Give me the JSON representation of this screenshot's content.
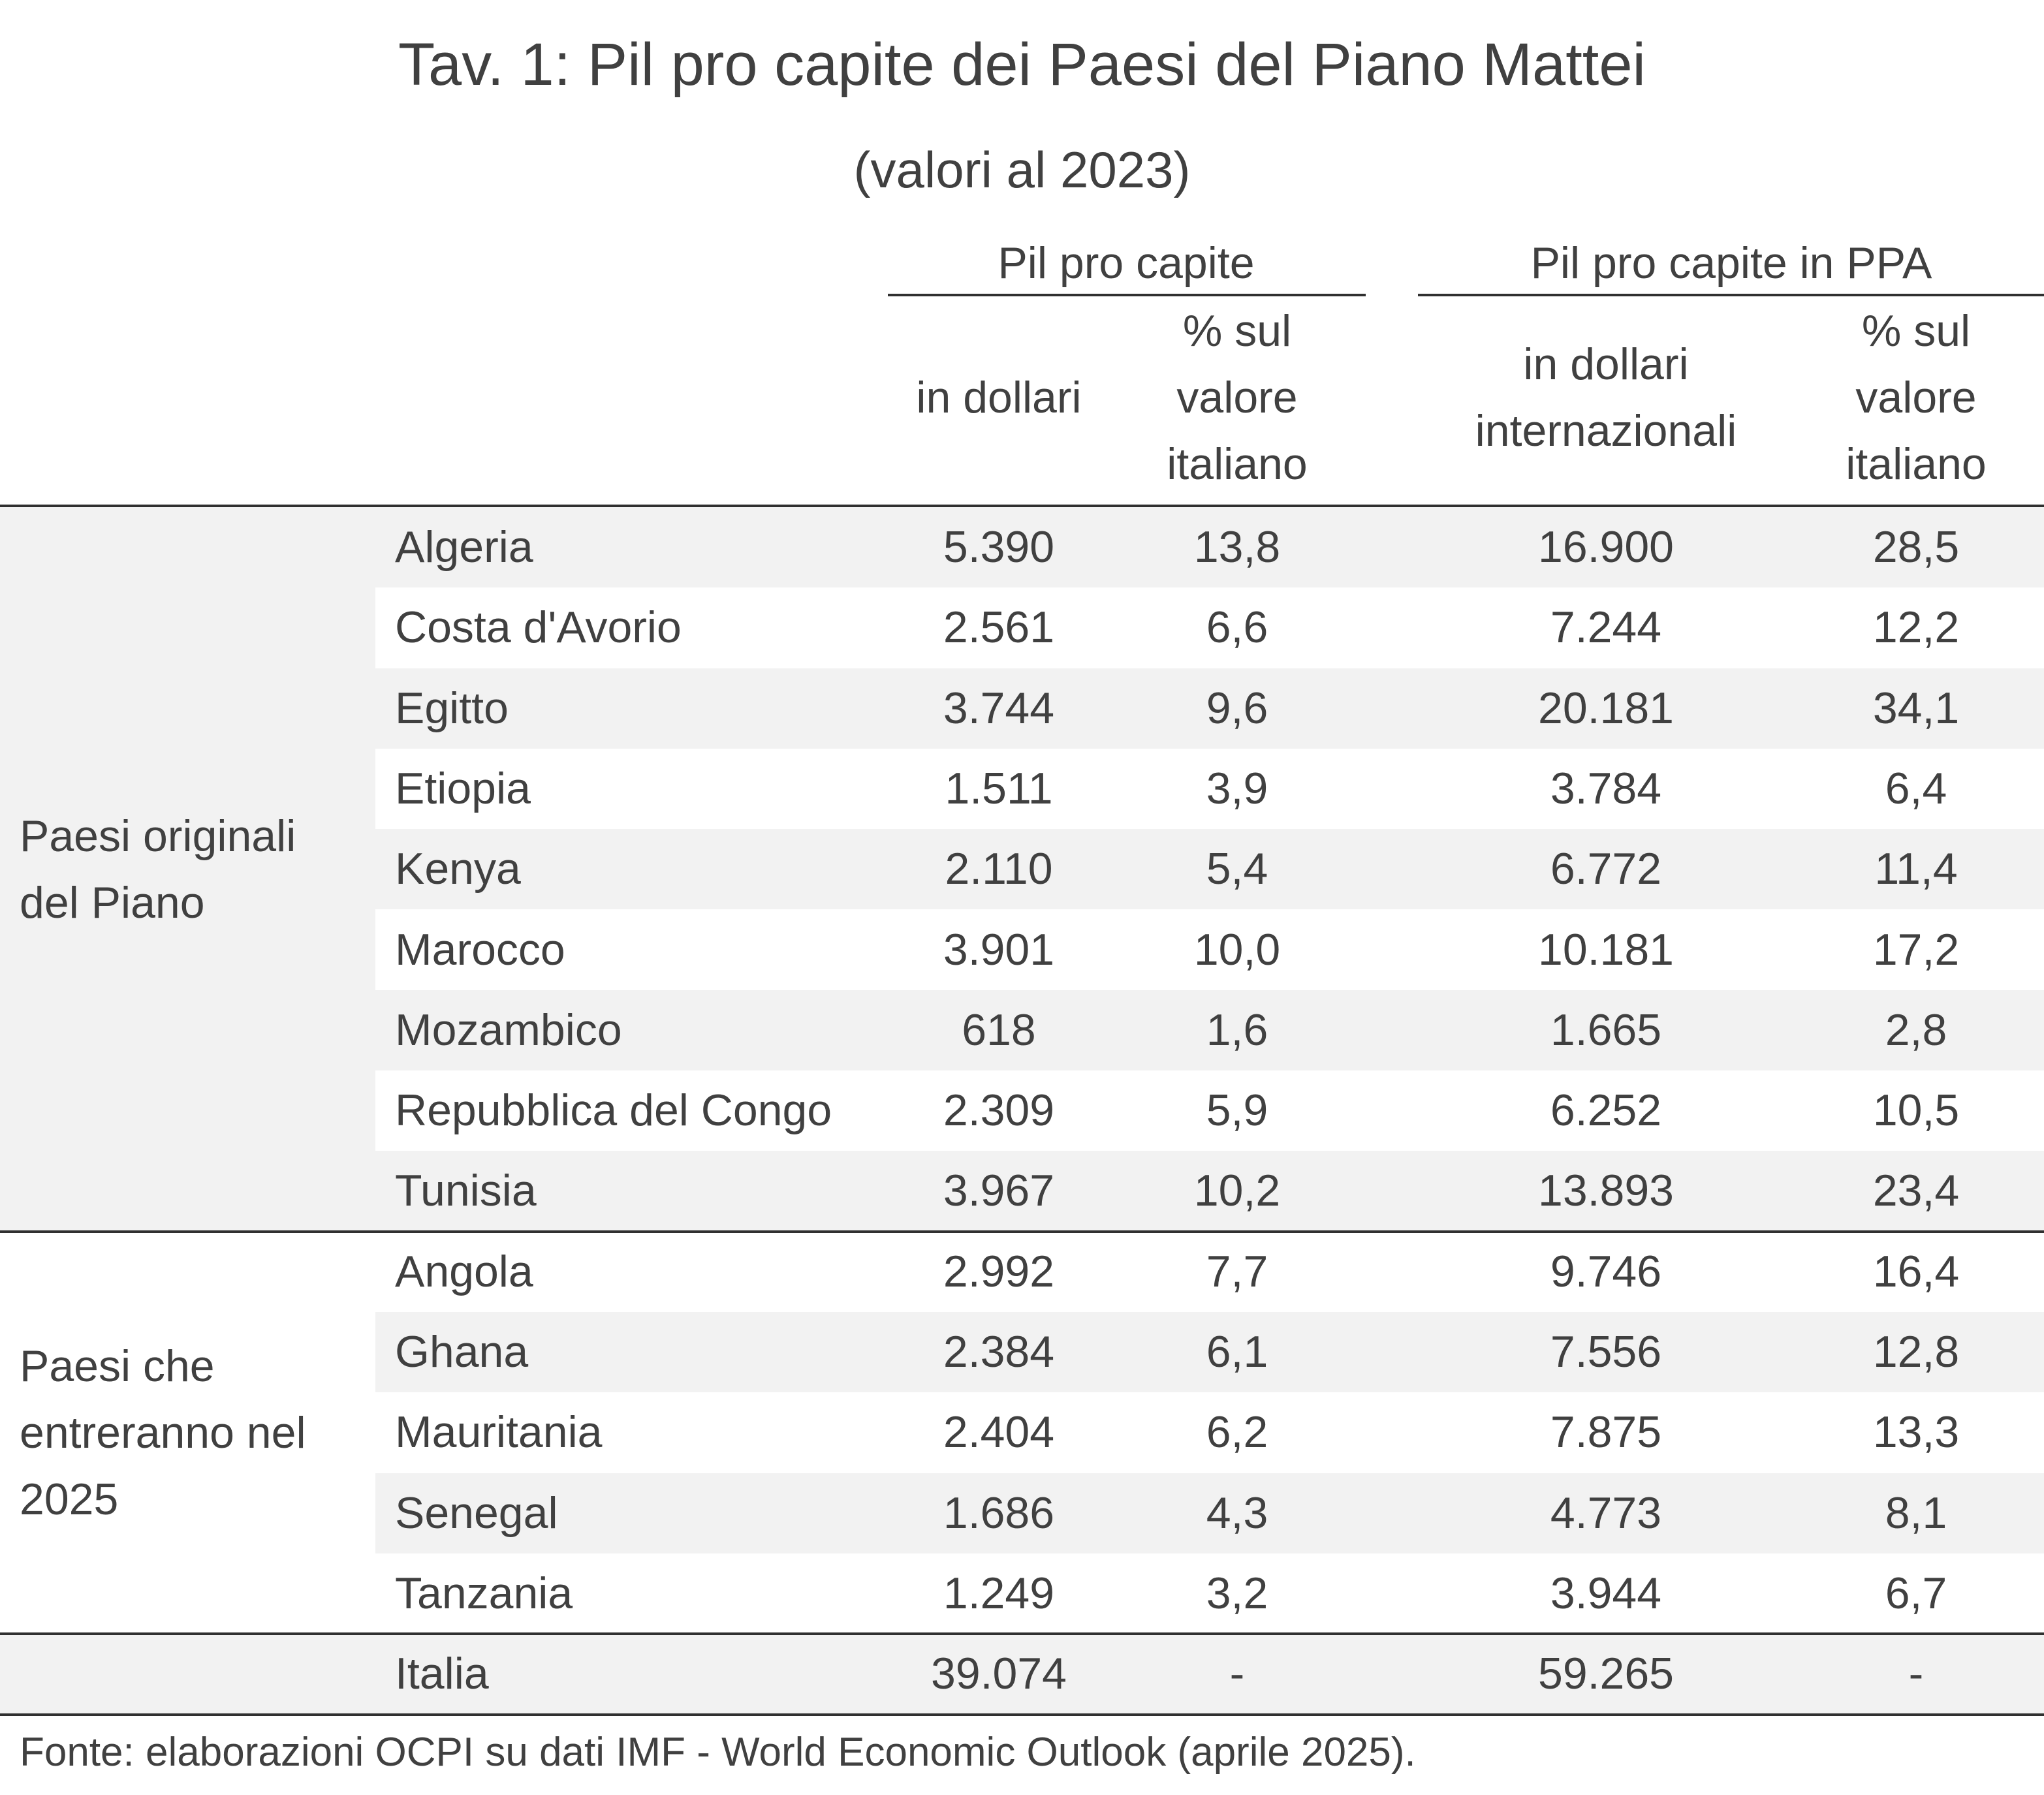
{
  "title": "Tav. 1: Pil pro capite dei Paesi del Piano Mattei",
  "subtitle": "(valori al 2023)",
  "chart_data": {
    "type": "table",
    "column_groups": [
      {
        "label": "Pil pro capite",
        "columns": [
          "in dollari",
          "% sul valore italiano"
        ]
      },
      {
        "label": "Pil pro capite in PPA",
        "columns": [
          "in dollari internazionali",
          "% sul valore italiano"
        ]
      }
    ],
    "headers": {
      "usd": [
        "in dollari"
      ],
      "usd_pct": [
        "% sul",
        "valore",
        "italiano"
      ],
      "ppa": [
        "in dollari",
        "internazionali"
      ],
      "ppa_pct": [
        "% sul",
        "valore",
        "italiano"
      ]
    },
    "groups": [
      {
        "label_lines": [
          "Paesi originali",
          "del Piano"
        ],
        "rows": [
          {
            "country": "Algeria",
            "usd": "5.390",
            "usd_pct": "13,8",
            "ppa": "16.900",
            "ppa_pct": "28,5"
          },
          {
            "country": "Costa d'Avorio",
            "usd": "2.561",
            "usd_pct": "6,6",
            "ppa": "7.244",
            "ppa_pct": "12,2"
          },
          {
            "country": "Egitto",
            "usd": "3.744",
            "usd_pct": "9,6",
            "ppa": "20.181",
            "ppa_pct": "34,1"
          },
          {
            "country": "Etiopia",
            "usd": "1.511",
            "usd_pct": "3,9",
            "ppa": "3.784",
            "ppa_pct": "6,4"
          },
          {
            "country": "Kenya",
            "usd": "2.110",
            "usd_pct": "5,4",
            "ppa": "6.772",
            "ppa_pct": "11,4"
          },
          {
            "country": "Marocco",
            "usd": "3.901",
            "usd_pct": "10,0",
            "ppa": "10.181",
            "ppa_pct": "17,2"
          },
          {
            "country": "Mozambico",
            "usd": "618",
            "usd_pct": "1,6",
            "ppa": "1.665",
            "ppa_pct": "2,8"
          },
          {
            "country": "Repubblica del Congo",
            "usd": "2.309",
            "usd_pct": "5,9",
            "ppa": "6.252",
            "ppa_pct": "10,5"
          },
          {
            "country": "Tunisia",
            "usd": "3.967",
            "usd_pct": "10,2",
            "ppa": "13.893",
            "ppa_pct": "23,4"
          }
        ]
      },
      {
        "label_lines": [
          "Paesi che",
          "entreranno nel",
          "2025"
        ],
        "rows": [
          {
            "country": "Angola",
            "usd": "2.992",
            "usd_pct": "7,7",
            "ppa": "9.746",
            "ppa_pct": "16,4"
          },
          {
            "country": "Ghana",
            "usd": "2.384",
            "usd_pct": "6,1",
            "ppa": "7.556",
            "ppa_pct": "12,8"
          },
          {
            "country": "Mauritania",
            "usd": "2.404",
            "usd_pct": "6,2",
            "ppa": "7.875",
            "ppa_pct": "13,3"
          },
          {
            "country": "Senegal",
            "usd": "1.686",
            "usd_pct": "4,3",
            "ppa": "4.773",
            "ppa_pct": "8,1"
          },
          {
            "country": "Tanzania",
            "usd": "1.249",
            "usd_pct": "3,2",
            "ppa": "3.944",
            "ppa_pct": "6,7"
          }
        ]
      },
      {
        "label_lines": [],
        "rows": [
          {
            "country": "Italia",
            "usd": "39.074",
            "usd_pct": "-",
            "ppa": "59.265",
            "ppa_pct": "-"
          }
        ]
      }
    ]
  },
  "source": "Fonte: elaborazioni OCPI su dati IMF - World Economic Outlook (aprile 2025)."
}
